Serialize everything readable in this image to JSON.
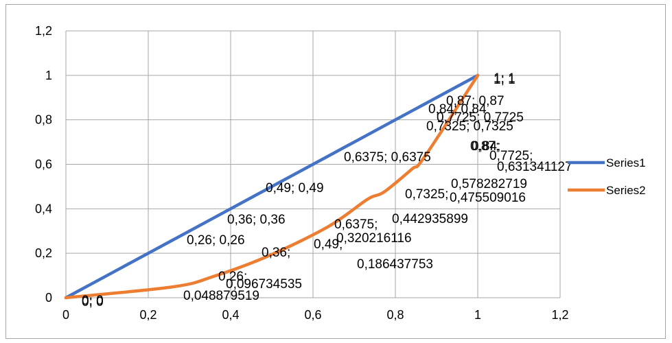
{
  "chart_data": {
    "type": "scatter",
    "title": "",
    "xlabel": "",
    "ylabel": "",
    "xlim": [
      0,
      1.2
    ],
    "ylim": [
      0,
      1.2
    ],
    "x_ticks": [
      "0",
      "0,2",
      "0,4",
      "0,6",
      "0,8",
      "1",
      "1,2"
    ],
    "y_ticks": [
      "0",
      "0,2",
      "0,4",
      "0,6",
      "0,8",
      "1",
      "1,2"
    ],
    "grid": true,
    "legend_position": "right",
    "series": [
      {
        "name": "Series1",
        "color": "#4472c4",
        "smooth": false,
        "x": [
          0,
          0.26,
          0.36,
          0.49,
          0.6375,
          0.7325,
          0.7725,
          0.84,
          0.87,
          1
        ],
        "y": [
          0,
          0.26,
          0.36,
          0.49,
          0.6375,
          0.7325,
          0.7725,
          0.84,
          0.87,
          1
        ],
        "point_labels": [
          "0; 0",
          "0,26; 0,26",
          "0,36; 0,36",
          "0,49; 0,49",
          "0,6375; 0,6375",
          "0,7325; 0,7325",
          "0,7725; 0,7725",
          "0,84; 0,84",
          "0,87; 0,87",
          "1; 1"
        ]
      },
      {
        "name": "Series2",
        "color": "#ed7d31",
        "smooth": true,
        "x": [
          0,
          0.26,
          0.36,
          0.49,
          0.6375,
          0.7325,
          0.7725,
          0.84,
          0.87,
          1
        ],
        "y": [
          0,
          0.048879519,
          0.096734535,
          0.186437753,
          0.320216116,
          0.442935899,
          0.475509016,
          0.578282719,
          0.631341127,
          1
        ],
        "point_labels": [
          "0; 0",
          "0,26; 0,048879519",
          "0,36; 0,096734535",
          "0,49; 0,186437753",
          "0,6375; 0,320216116",
          "0,7325; 0,442935899",
          "0,7725; 0,475509016",
          "0,84; 0,578282719",
          "0,87; 0,631341127",
          "1; 1"
        ]
      }
    ]
  }
}
